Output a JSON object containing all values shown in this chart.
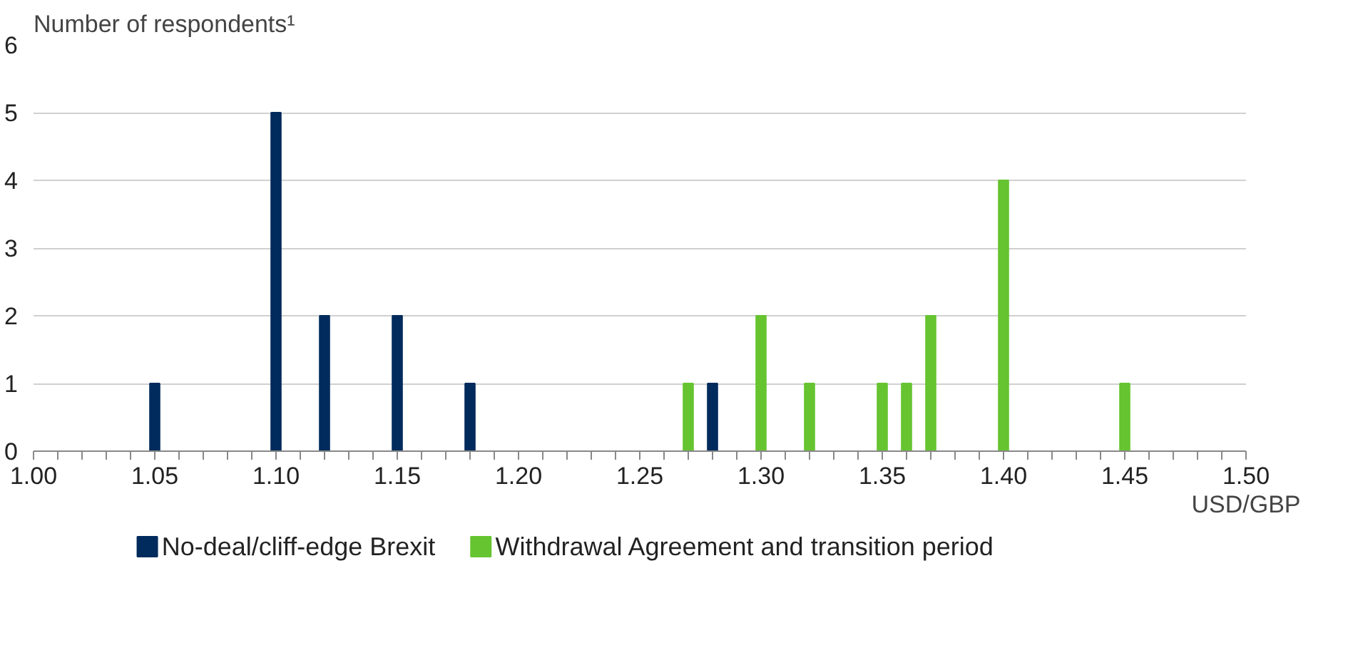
{
  "chart_data": {
    "type": "bar",
    "ylabel": "Number of respondents¹",
    "xlabel": "USD/GBP",
    "xlim": [
      1.0,
      1.5
    ],
    "xticks": [
      {
        "value": 1.0,
        "label": "1.00"
      },
      {
        "value": 1.01,
        "label": null
      },
      {
        "value": 1.02,
        "label": null
      },
      {
        "value": 1.03,
        "label": null
      },
      {
        "value": 1.04,
        "label": null
      },
      {
        "value": 1.05,
        "label": "1.05"
      },
      {
        "value": 1.06,
        "label": null
      },
      {
        "value": 1.07,
        "label": null
      },
      {
        "value": 1.08,
        "label": null
      },
      {
        "value": 1.09,
        "label": null
      },
      {
        "value": 1.1,
        "label": "1.10"
      },
      {
        "value": 1.11,
        "label": null
      },
      {
        "value": 1.12,
        "label": null
      },
      {
        "value": 1.13,
        "label": null
      },
      {
        "value": 1.14,
        "label": null
      },
      {
        "value": 1.15,
        "label": "1.15"
      },
      {
        "value": 1.16,
        "label": null
      },
      {
        "value": 1.17,
        "label": null
      },
      {
        "value": 1.18,
        "label": null
      },
      {
        "value": 1.19,
        "label": null
      },
      {
        "value": 1.2,
        "label": "1.20"
      },
      {
        "value": 1.21,
        "label": null
      },
      {
        "value": 1.22,
        "label": null
      },
      {
        "value": 1.23,
        "label": null
      },
      {
        "value": 1.24,
        "label": null
      },
      {
        "value": 1.25,
        "label": "1.25"
      },
      {
        "value": 1.26,
        "label": null
      },
      {
        "value": 1.27,
        "label": null
      },
      {
        "value": 1.28,
        "label": null
      },
      {
        "value": 1.29,
        "label": null
      },
      {
        "value": 1.3,
        "label": "1.30"
      },
      {
        "value": 1.31,
        "label": null
      },
      {
        "value": 1.32,
        "label": null
      },
      {
        "value": 1.33,
        "label": null
      },
      {
        "value": 1.34,
        "label": null
      },
      {
        "value": 1.35,
        "label": "1.35"
      },
      {
        "value": 1.36,
        "label": null
      },
      {
        "value": 1.37,
        "label": null
      },
      {
        "value": 1.38,
        "label": null
      },
      {
        "value": 1.39,
        "label": null
      },
      {
        "value": 1.4,
        "label": "1.40"
      },
      {
        "value": 1.41,
        "label": null
      },
      {
        "value": 1.42,
        "label": null
      },
      {
        "value": 1.43,
        "label": null
      },
      {
        "value": 1.44,
        "label": null
      },
      {
        "value": 1.45,
        "label": "1.45"
      },
      {
        "value": 1.46,
        "label": null
      },
      {
        "value": 1.47,
        "label": null
      },
      {
        "value": 1.48,
        "label": null
      },
      {
        "value": 1.49,
        "label": null
      },
      {
        "value": 1.5,
        "label": "1.50"
      }
    ],
    "ylim": [
      0,
      6
    ],
    "yticks": [
      0,
      1,
      2,
      3,
      4,
      5,
      6
    ],
    "grid": "y",
    "legend": "bottom",
    "series": [
      {
        "name": "No-deal/cliff-edge Brexit",
        "color": "#002b5c",
        "x": [
          1.05,
          1.1,
          1.12,
          1.15,
          1.18,
          1.28
        ],
        "values": [
          1,
          5,
          2,
          2,
          1,
          1
        ]
      },
      {
        "name": "Withdrawal Agreement and transition period",
        "color": "#66c430",
        "x": [
          1.27,
          1.3,
          1.32,
          1.35,
          1.36,
          1.37,
          1.4,
          1.45
        ],
        "values": [
          1,
          2,
          1,
          1,
          1,
          2,
          4,
          1
        ]
      }
    ]
  }
}
